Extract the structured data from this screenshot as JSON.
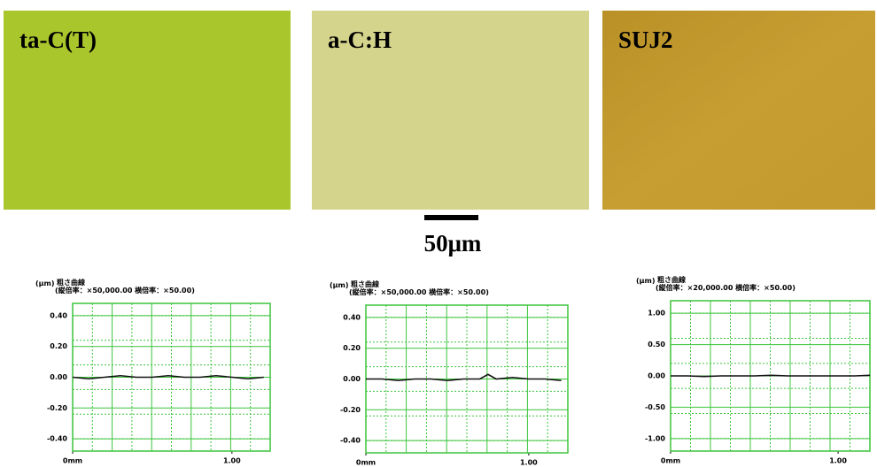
{
  "images": [
    {
      "label": "ta-C(T)",
      "color": "#a9c62c"
    },
    {
      "label": "a-C:H",
      "color": "#d5d48c"
    },
    {
      "label": "SUJ2",
      "color": "#c39a2e"
    }
  ],
  "scale_bar": {
    "label": "50μm"
  },
  "chart_data": [
    {
      "type": "line",
      "unit": "(μm)",
      "title": "粗さ曲線",
      "subtitle": "(縦倍率：×50,000.00 横倍率：×50.00)",
      "x": [
        0,
        0.1,
        0.2,
        0.3,
        0.4,
        0.5,
        0.6,
        0.7,
        0.8,
        0.9,
        1.0,
        1.1,
        1.2
      ],
      "series": [
        {
          "color": "#111111",
          "values": [
            0,
            -0.01,
            0,
            0.01,
            0,
            0,
            0.01,
            0,
            0,
            0.01,
            0,
            -0.01,
            0
          ]
        }
      ],
      "xlim": [
        0,
        1.24
      ],
      "xticks": [
        {
          "value": 0,
          "label": "0mm"
        },
        {
          "value": 1,
          "label": "1.00"
        }
      ],
      "ylim": [
        -0.48,
        0.48
      ],
      "yticks": [
        {
          "value": 0.4,
          "label": "0.40"
        },
        {
          "value": 0.2,
          "label": "0.20"
        },
        {
          "value": 0,
          "label": "0.00"
        },
        {
          "value": -0.2,
          "label": "-0.20"
        },
        {
          "value": -0.4,
          "label": "-0.40"
        }
      ],
      "grid": true
    },
    {
      "type": "line",
      "unit": "(μm)",
      "title": "粗さ曲線",
      "subtitle": "(縦倍率：×50,000.00 横倍率：×50.00)",
      "x": [
        0,
        0.1,
        0.2,
        0.3,
        0.4,
        0.5,
        0.6,
        0.7,
        0.75,
        0.8,
        0.9,
        1.0,
        1.1,
        1.2
      ],
      "series": [
        {
          "color": "#111111",
          "values": [
            0,
            0,
            -0.01,
            0,
            0,
            -0.01,
            0,
            0,
            0.03,
            0,
            0.01,
            0,
            0,
            -0.01
          ]
        }
      ],
      "xlim": [
        0,
        1.24
      ],
      "xticks": [
        {
          "value": 0,
          "label": "0mm"
        },
        {
          "value": 1,
          "label": "1.00"
        }
      ],
      "ylim": [
        -0.48,
        0.48
      ],
      "yticks": [
        {
          "value": 0.4,
          "label": "0.40"
        },
        {
          "value": 0.2,
          "label": "0.20"
        },
        {
          "value": 0,
          "label": "0.00"
        },
        {
          "value": -0.2,
          "label": "-0.20"
        },
        {
          "value": -0.4,
          "label": "-0.40"
        }
      ],
      "grid": true
    },
    {
      "type": "line",
      "unit": "(μm)",
      "title": "粗さ曲線",
      "subtitle": "(縦倍率：×20,000.00 横倍率：×50.00)",
      "x": [
        0,
        0.1,
        0.2,
        0.3,
        0.4,
        0.5,
        0.6,
        0.7,
        0.8,
        0.9,
        1.0,
        1.1,
        1.19
      ],
      "series": [
        {
          "color": "#111111",
          "values": [
            0,
            0,
            -0.01,
            0,
            0,
            0,
            0.01,
            0,
            0,
            0,
            0,
            0,
            0.01
          ]
        }
      ],
      "xlim": [
        0,
        1.19
      ],
      "xticks": [
        {
          "value": 0,
          "label": "0mm"
        },
        {
          "value": 1,
          "label": "1.00"
        }
      ],
      "ylim": [
        -1.2,
        1.2
      ],
      "yticks": [
        {
          "value": 1,
          "label": "1.00"
        },
        {
          "value": 0.5,
          "label": "0.50"
        },
        {
          "value": 0,
          "label": "0.00"
        },
        {
          "value": -0.5,
          "label": "-0.50"
        },
        {
          "value": -1,
          "label": "-1.00"
        }
      ],
      "grid": true
    }
  ]
}
